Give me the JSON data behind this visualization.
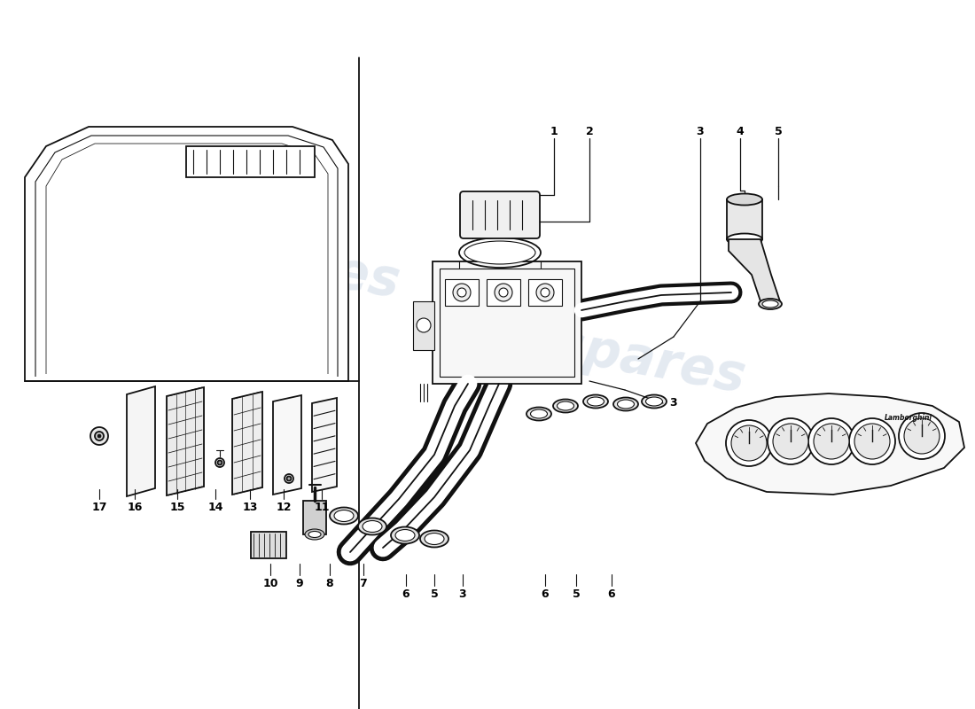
{
  "background_color": "#ffffff",
  "line_color": "#111111",
  "label_color": "#000000",
  "watermark_text": "eurospares",
  "watermark_color": "#b8c8dc",
  "watermark_alpha": 0.38,
  "fig_width": 11.0,
  "fig_height": 8.0,
  "dpi": 100,
  "top_labels": [
    [
      "1",
      625,
      148
    ],
    [
      "2",
      665,
      148
    ],
    [
      "3",
      790,
      148
    ],
    [
      "4",
      835,
      148
    ],
    [
      "5",
      878,
      148
    ]
  ],
  "bottom_labels": [
    [
      "10",
      305,
      658
    ],
    [
      "9",
      338,
      658
    ],
    [
      "8",
      372,
      658
    ],
    [
      "7",
      410,
      658
    ],
    [
      "6",
      458,
      670
    ],
    [
      "5",
      490,
      670
    ],
    [
      "3",
      522,
      670
    ],
    [
      "6",
      615,
      670
    ],
    [
      "5",
      650,
      670
    ],
    [
      "6",
      690,
      670
    ]
  ],
  "left_part_labels": [
    [
      "17",
      112,
      572
    ],
    [
      "16",
      152,
      572
    ],
    [
      "15",
      200,
      572
    ],
    [
      "14",
      243,
      572
    ],
    [
      "13",
      282,
      572
    ],
    [
      "12",
      320,
      572
    ],
    [
      "11",
      363,
      572
    ]
  ],
  "mid_label_3": [
    760,
    455
  ]
}
